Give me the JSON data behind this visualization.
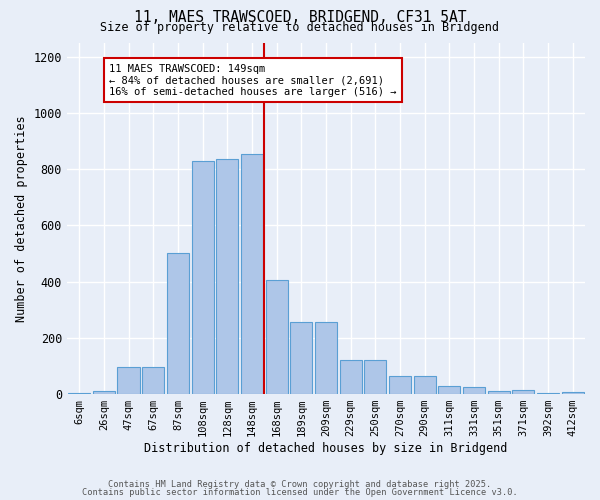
{
  "title1": "11, MAES TRAWSCOED, BRIDGEND, CF31 5AT",
  "title2": "Size of property relative to detached houses in Bridgend",
  "xlabel": "Distribution of detached houses by size in Bridgend",
  "ylabel": "Number of detached properties",
  "categories": [
    "6sqm",
    "26sqm",
    "47sqm",
    "67sqm",
    "87sqm",
    "108sqm",
    "128sqm",
    "148sqm",
    "168sqm",
    "189sqm",
    "209sqm",
    "229sqm",
    "250sqm",
    "270sqm",
    "290sqm",
    "311sqm",
    "331sqm",
    "351sqm",
    "371sqm",
    "392sqm",
    "412sqm"
  ],
  "bar_values": [
    5,
    10,
    95,
    95,
    500,
    830,
    835,
    855,
    405,
    255,
    255,
    120,
    120,
    65,
    65,
    30,
    25,
    12,
    15,
    5,
    8
  ],
  "bar_color": "#aec6e8",
  "bar_edge_color": "#5a9fd4",
  "vline_color": "#cc0000",
  "annotation_text": "11 MAES TRAWSCOED: 149sqm\n← 84% of detached houses are smaller (2,691)\n16% of semi-detached houses are larger (516) →",
  "ylim": [
    0,
    1250
  ],
  "yticks": [
    0,
    200,
    400,
    600,
    800,
    1000,
    1200
  ],
  "background_color": "#e8eef8",
  "grid_color": "#ffffff",
  "footer1": "Contains HM Land Registry data © Crown copyright and database right 2025.",
  "footer2": "Contains public sector information licensed under the Open Government Licence v3.0."
}
